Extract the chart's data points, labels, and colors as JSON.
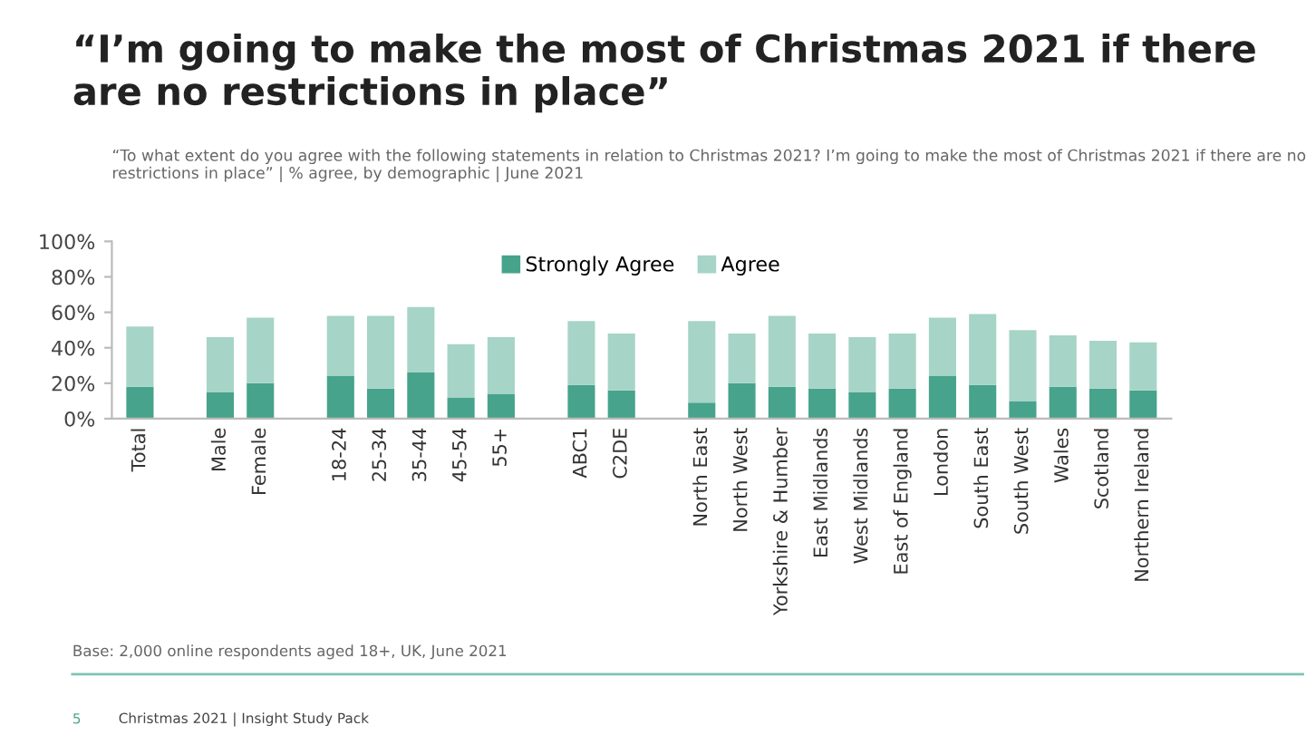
{
  "chart_data": {
    "type": "bar",
    "stacked": true,
    "title": "“I’m going to make the most of Christmas 2021 if there are no restrictions in place”",
    "subtitle": "“To what extent do you agree with the following statements in relation to Christmas 2021? I’m going to make the most of Christmas 2021 if there are no restrictions in place” | % agree, by demographic | June 2021",
    "categories": [
      "Total",
      null,
      "Male",
      "Female",
      null,
      "18-24",
      "25-34",
      "35-44",
      "45-54",
      "55+",
      null,
      "ABC1",
      "C2DE",
      null,
      "North East",
      "North West",
      "Yorkshire & Humber",
      "East Midlands",
      "West Midlands",
      "East of England",
      "London",
      "South East",
      "South West",
      "Wales",
      "Scotland",
      "Northern Ireland"
    ],
    "series": [
      {
        "name": "Strongly Agree",
        "color": "#47a38b",
        "values": [
          18,
          null,
          15,
          20,
          null,
          24,
          17,
          26,
          12,
          14,
          null,
          19,
          16,
          null,
          9,
          20,
          18,
          17,
          15,
          17,
          24,
          19,
          10,
          18,
          17,
          16
        ]
      },
      {
        "name": "Agree",
        "color": "#a6d4c7",
        "values": [
          34,
          null,
          31,
          37,
          null,
          34,
          41,
          37,
          30,
          32,
          null,
          36,
          32,
          null,
          46,
          28,
          40,
          31,
          31,
          31,
          33,
          40,
          40,
          29,
          27,
          27
        ]
      }
    ],
    "ylim": [
      0,
      100
    ],
    "yticks": [
      {
        "value": 0,
        "label": "0%"
      },
      {
        "value": 20,
        "label": "20%"
      },
      {
        "value": 40,
        "label": "40%"
      },
      {
        "value": 60,
        "label": "60%"
      },
      {
        "value": 80,
        "label": "80%"
      },
      {
        "value": 100,
        "label": "100%"
      }
    ],
    "legend": "top",
    "grid": false,
    "annotations": [
      "Base: 2,000 online respondents aged 18+, UK, June 2021",
      "5",
      "Christmas 2021 | Insight Study Pack"
    ]
  }
}
